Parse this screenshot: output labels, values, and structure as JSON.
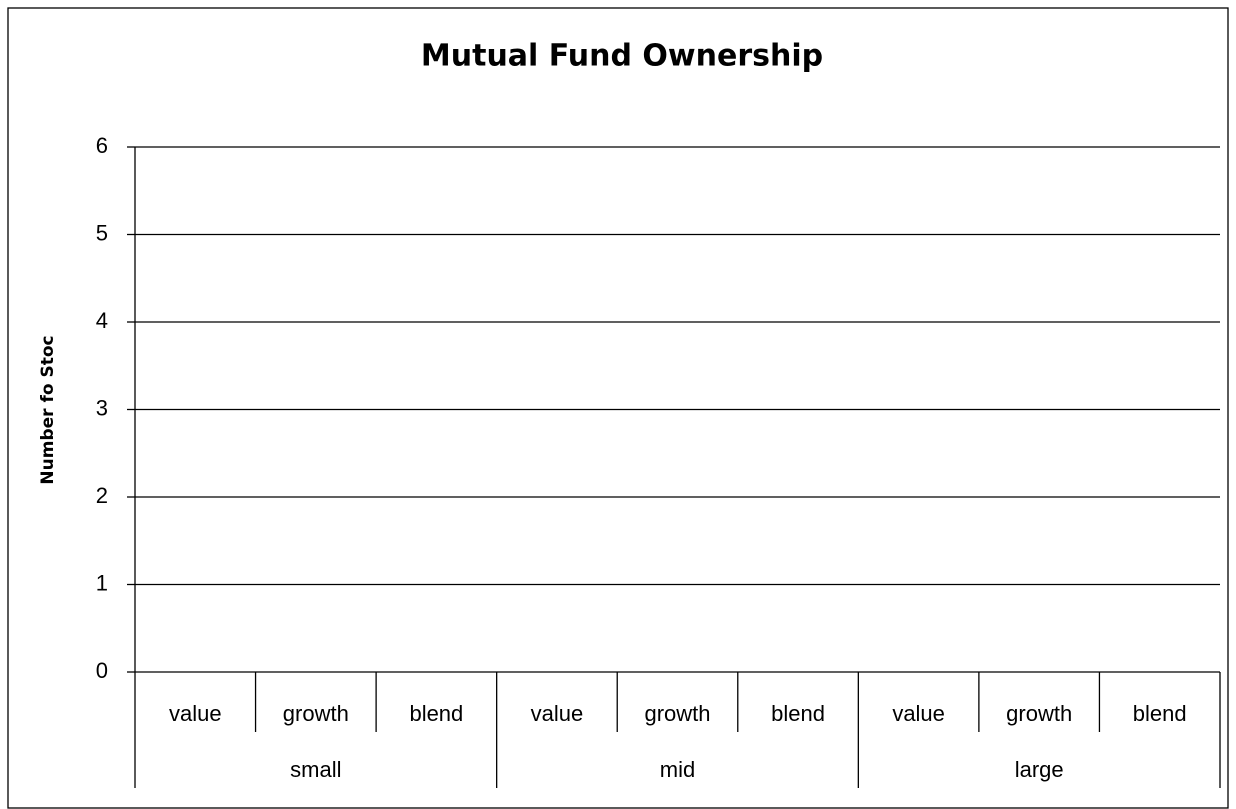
{
  "chart_data": {
    "type": "bar",
    "title": "Mutual Fund Ownership",
    "y_label": "Number fo Stoc",
    "categories": [
      "value",
      "growth",
      "blend",
      "value",
      "growth",
      "blend",
      "value",
      "growth",
      "blend"
    ],
    "groups": [
      "small",
      "mid",
      "large"
    ],
    "values": [
      0,
      0,
      0,
      0,
      0,
      0,
      0,
      0,
      0
    ],
    "color": "#4472c4",
    "ylim": [
      0,
      6
    ],
    "yticks": [
      0,
      1,
      2,
      3,
      4,
      5,
      6
    ],
    "grid": true
  }
}
